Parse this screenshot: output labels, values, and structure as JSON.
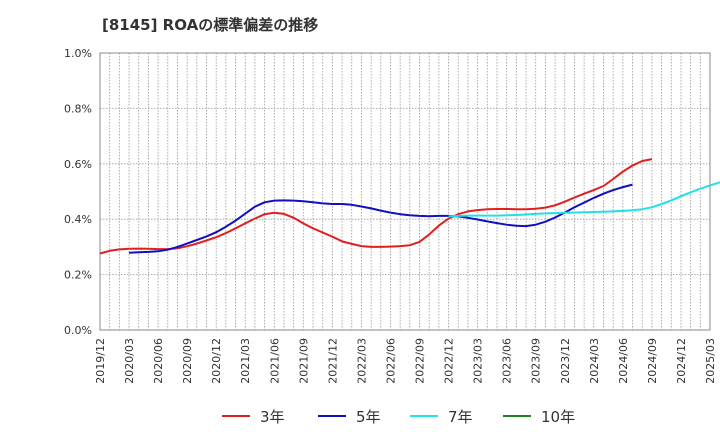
{
  "chart_data": {
    "type": "line",
    "title": "[8145]  ROAの標準偏差の推移",
    "x_ticks": [
      "2019/12",
      "2020/03",
      "2020/06",
      "2020/09",
      "2020/12",
      "2021/03",
      "2021/06",
      "2021/09",
      "2021/12",
      "2022/03",
      "2022/06",
      "2022/09",
      "2022/12",
      "2023/03",
      "2023/06",
      "2023/09",
      "2023/12",
      "2024/03",
      "2024/06",
      "2024/09",
      "2024/12",
      "2025/03"
    ],
    "y_ticks": [
      "0.0%",
      "0.2%",
      "0.4%",
      "0.6%",
      "0.8%",
      "1.0%"
    ],
    "ylim": [
      0,
      1.0
    ],
    "grid": true,
    "legend_position": "bottom",
    "series": [
      {
        "name": "3年",
        "color": "#e02020",
        "start_index": 0,
        "values": [
          0.276,
          0.286,
          0.291,
          0.293,
          0.294,
          0.293,
          0.292,
          0.292,
          0.295,
          0.302,
          0.312,
          0.323,
          0.335,
          0.35,
          0.367,
          0.385,
          0.402,
          0.418,
          0.423,
          0.419,
          0.405,
          0.385,
          0.367,
          0.352,
          0.337,
          0.32,
          0.311,
          0.303,
          0.3,
          0.3,
          0.301,
          0.303,
          0.306,
          0.318,
          0.345,
          0.377,
          0.402,
          0.418,
          0.428,
          0.433,
          0.436,
          0.437,
          0.437,
          0.436,
          0.436,
          0.438,
          0.442,
          0.45,
          0.463,
          0.478,
          0.492,
          0.505,
          0.52,
          0.545,
          0.572,
          0.594,
          0.61,
          0.617
        ]
      },
      {
        "name": "5年",
        "color": "#1010c0",
        "start_index": 3,
        "values": [
          0.279,
          0.281,
          0.282,
          0.284,
          0.29,
          0.3,
          0.312,
          0.325,
          0.338,
          0.353,
          0.373,
          0.395,
          0.42,
          0.445,
          0.461,
          0.467,
          0.468,
          0.467,
          0.465,
          0.461,
          0.457,
          0.455,
          0.455,
          0.452,
          0.446,
          0.439,
          0.431,
          0.424,
          0.418,
          0.414,
          0.412,
          0.411,
          0.412,
          0.412,
          0.41,
          0.405,
          0.399,
          0.392,
          0.386,
          0.38,
          0.376,
          0.375,
          0.38,
          0.391,
          0.406,
          0.424,
          0.443,
          0.46,
          0.477,
          0.492,
          0.505,
          0.516,
          0.525
        ]
      },
      {
        "name": "7年",
        "color": "#20e0e8",
        "start_index": 36,
        "values": [
          0.41,
          0.412,
          0.413,
          0.413,
          0.413,
          0.413,
          0.414,
          0.415,
          0.417,
          0.419,
          0.421,
          0.422,
          0.423,
          0.424,
          0.425,
          0.426,
          0.427,
          0.428,
          0.43,
          0.432,
          0.436,
          0.443,
          0.455,
          0.468,
          0.483,
          0.497,
          0.51,
          0.522,
          0.533,
          0.541,
          0.546
        ]
      },
      {
        "name": "10年",
        "color": "#208020",
        "start_index": 0,
        "values": []
      }
    ]
  }
}
